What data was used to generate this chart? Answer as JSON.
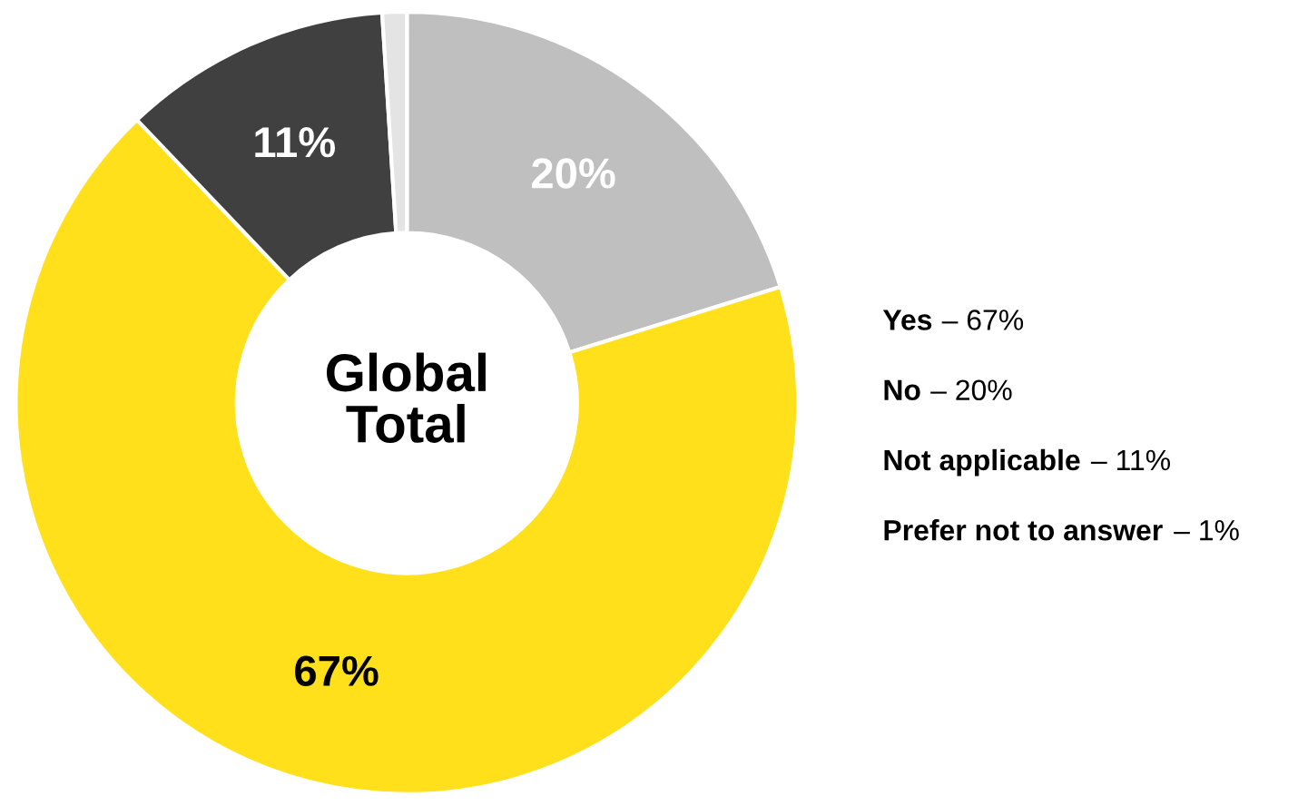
{
  "chart_data": {
    "type": "donut",
    "title": "Global Total",
    "categories": [
      null,
      null,
      null,
      null
    ],
    "values": [
      20,
      67,
      11,
      1
    ],
    "colors": [
      "#bfbfbf",
      "#ffe01b",
      "#404040",
      "#e4e4e4"
    ],
    "value_labels": [
      "20%",
      "67%",
      "11%",
      null
    ],
    "annotations": [
      "Yes",
      "– 67%",
      "No",
      "– 20%",
      "Not applicable",
      "– 11%",
      "Prefer not to answer",
      "– 1%"
    ]
  }
}
